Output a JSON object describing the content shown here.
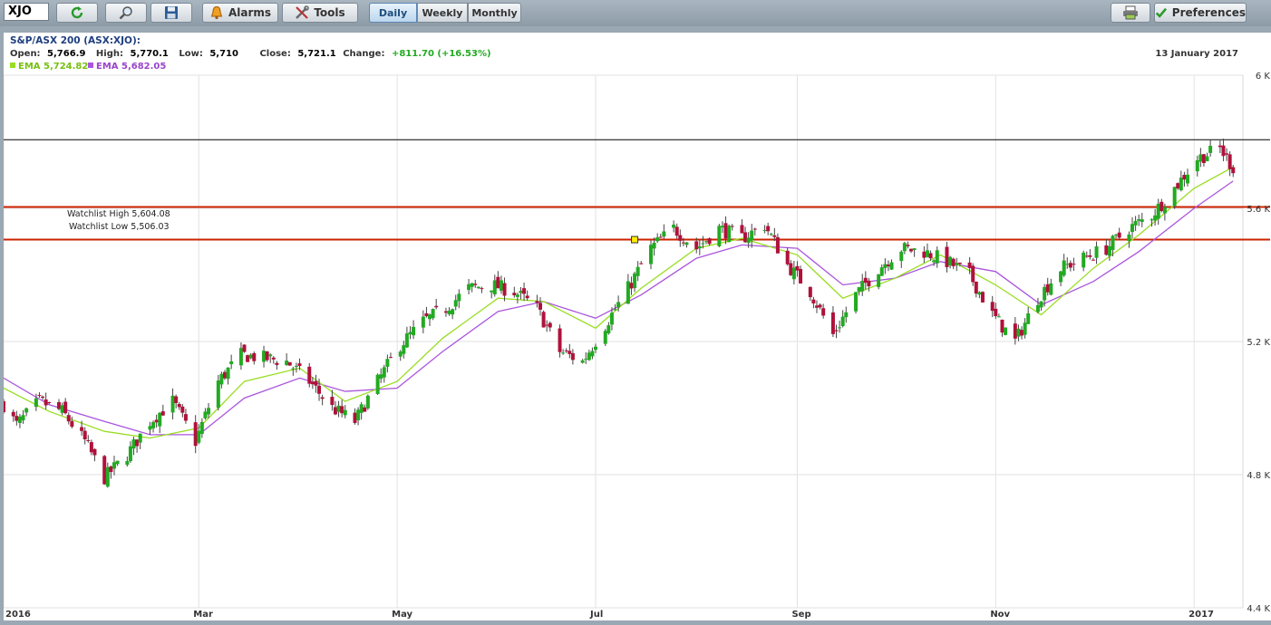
{
  "toolbar": {
    "symbol": "XJO",
    "alarms_label": "Alarms",
    "tools_label": "Tools",
    "periods": [
      "Daily",
      "Weekly",
      "Monthly"
    ],
    "active_period": "Daily",
    "preferences_label": "Preferences"
  },
  "header": {
    "title": "S&P/ASX 200 (ASX:XJO):",
    "open_label": "Open:",
    "open": "5,766.9",
    "high_label": "High:",
    "high": "5,770.1",
    "low_label": "Low:",
    "low": "5,710",
    "close_label": "Close:",
    "close": "5,721.1",
    "change_label": "Change:",
    "change": "+811.70 (+16.53%)",
    "date": "13 January 2017",
    "ema1_label": "EMA 5,724.82",
    "ema2_label": "EMA 5,682.05"
  },
  "colors": {
    "up": "#22aa22",
    "down": "#b0113a",
    "ema_fast": "#99dd22",
    "ema_slow": "#aa55dd",
    "watch": "#cc2200"
  },
  "chart_data": {
    "type": "candlestick",
    "ylim": [
      4400,
      6000
    ],
    "yticks": [
      4400,
      4800,
      5200,
      5600,
      6000
    ],
    "ytick_labels": [
      "4.4 K",
      "4.8 K",
      "5.2 K",
      "5.6 K",
      "6 K"
    ],
    "xlim": [
      "2016-01-01",
      "2017-01-16"
    ],
    "xticks": [
      {
        "date": "2016-01-01",
        "label": "2016"
      },
      {
        "date": "2016-03-01",
        "label": "Mar"
      },
      {
        "date": "2016-05-01",
        "label": "May"
      },
      {
        "date": "2016-07-01",
        "label": "Jul"
      },
      {
        "date": "2016-09-01",
        "label": "Sep"
      },
      {
        "date": "2016-11-01",
        "label": "Nov"
      },
      {
        "date": "2017-01-01",
        "label": "2017"
      }
    ],
    "close_path": [
      [
        "2016-01-01",
        5010
      ],
      [
        "2016-01-05",
        4950
      ],
      [
        "2016-01-12",
        5020
      ],
      [
        "2016-01-19",
        4990
      ],
      [
        "2016-01-26",
        4900
      ],
      [
        "2016-02-01",
        4790
      ],
      [
        "2016-02-08",
        4860
      ],
      [
        "2016-02-15",
        4960
      ],
      [
        "2016-02-22",
        5020
      ],
      [
        "2016-02-29",
        4900
      ],
      [
        "2016-03-07",
        5080
      ],
      [
        "2016-03-14",
        5160
      ],
      [
        "2016-03-21",
        5150
      ],
      [
        "2016-03-28",
        5140
      ],
      [
        "2016-04-04",
        5080
      ],
      [
        "2016-04-11",
        5000
      ],
      [
        "2016-04-18",
        4960
      ],
      [
        "2016-04-25",
        5080
      ],
      [
        "2016-05-02",
        5190
      ],
      [
        "2016-05-09",
        5260
      ],
      [
        "2016-05-16",
        5300
      ],
      [
        "2016-05-23",
        5360
      ],
      [
        "2016-05-30",
        5370
      ],
      [
        "2016-06-06",
        5350
      ],
      [
        "2016-06-13",
        5300
      ],
      [
        "2016-06-20",
        5170
      ],
      [
        "2016-06-27",
        5140
      ],
      [
        "2016-07-04",
        5250
      ],
      [
        "2016-07-11",
        5360
      ],
      [
        "2016-07-18",
        5480
      ],
      [
        "2016-07-25",
        5540
      ],
      [
        "2016-08-01",
        5480
      ],
      [
        "2016-08-08",
        5540
      ],
      [
        "2016-08-15",
        5510
      ],
      [
        "2016-08-22",
        5550
      ],
      [
        "2016-08-29",
        5430
      ],
      [
        "2016-09-05",
        5350
      ],
      [
        "2016-09-12",
        5220
      ],
      [
        "2016-09-19",
        5340
      ],
      [
        "2016-09-26",
        5420
      ],
      [
        "2016-10-03",
        5480
      ],
      [
        "2016-10-10",
        5470
      ],
      [
        "2016-10-17",
        5440
      ],
      [
        "2016-10-24",
        5400
      ],
      [
        "2016-10-31",
        5280
      ],
      [
        "2016-11-07",
        5200
      ],
      [
        "2016-11-14",
        5330
      ],
      [
        "2016-11-21",
        5420
      ],
      [
        "2016-11-28",
        5450
      ],
      [
        "2016-12-05",
        5480
      ],
      [
        "2016-12-12",
        5540
      ],
      [
        "2016-12-19",
        5580
      ],
      [
        "2016-12-26",
        5660
      ],
      [
        "2017-01-02",
        5750
      ],
      [
        "2017-01-09",
        5780
      ],
      [
        "2017-01-13",
        5721
      ]
    ],
    "ema_fast_path": [
      [
        "2016-01-01",
        5060
      ],
      [
        "2016-01-15",
        4990
      ],
      [
        "2016-02-01",
        4930
      ],
      [
        "2016-02-15",
        4910
      ],
      [
        "2016-03-01",
        4940
      ],
      [
        "2016-03-15",
        5080
      ],
      [
        "2016-04-01",
        5120
      ],
      [
        "2016-04-15",
        5020
      ],
      [
        "2016-05-01",
        5080
      ],
      [
        "2016-05-15",
        5210
      ],
      [
        "2016-06-01",
        5330
      ],
      [
        "2016-06-15",
        5320
      ],
      [
        "2016-07-01",
        5240
      ],
      [
        "2016-07-15",
        5360
      ],
      [
        "2016-08-01",
        5480
      ],
      [
        "2016-08-15",
        5510
      ],
      [
        "2016-09-01",
        5460
      ],
      [
        "2016-09-15",
        5330
      ],
      [
        "2016-10-01",
        5390
      ],
      [
        "2016-10-15",
        5460
      ],
      [
        "2016-11-01",
        5370
      ],
      [
        "2016-11-15",
        5280
      ],
      [
        "2016-12-01",
        5420
      ],
      [
        "2016-12-15",
        5520
      ],
      [
        "2017-01-01",
        5660
      ],
      [
        "2017-01-13",
        5724
      ]
    ],
    "ema_slow_path": [
      [
        "2016-01-01",
        5090
      ],
      [
        "2016-01-15",
        5010
      ],
      [
        "2016-02-01",
        4960
      ],
      [
        "2016-02-15",
        4920
      ],
      [
        "2016-03-01",
        4920
      ],
      [
        "2016-03-15",
        5030
      ],
      [
        "2016-04-01",
        5090
      ],
      [
        "2016-04-15",
        5050
      ],
      [
        "2016-05-01",
        5060
      ],
      [
        "2016-05-15",
        5170
      ],
      [
        "2016-06-01",
        5290
      ],
      [
        "2016-06-15",
        5320
      ],
      [
        "2016-07-01",
        5270
      ],
      [
        "2016-07-15",
        5340
      ],
      [
        "2016-08-01",
        5450
      ],
      [
        "2016-08-15",
        5490
      ],
      [
        "2016-09-01",
        5480
      ],
      [
        "2016-09-15",
        5370
      ],
      [
        "2016-10-01",
        5390
      ],
      [
        "2016-10-15",
        5440
      ],
      [
        "2016-11-01",
        5410
      ],
      [
        "2016-11-15",
        5310
      ],
      [
        "2016-12-01",
        5380
      ],
      [
        "2016-12-15",
        5470
      ],
      [
        "2017-01-01",
        5600
      ],
      [
        "2017-01-13",
        5682
      ]
    ],
    "horizontal_lines": [
      {
        "value": 5806,
        "color": "#000000"
      },
      {
        "value": 5604.08,
        "color": "#cc2200",
        "label": "Watchlist High 5,604.08"
      },
      {
        "value": 5506.03,
        "color": "#cc2200",
        "label": "Watchlist Low 5,506.03"
      }
    ],
    "marker": {
      "date": "2016-07-13",
      "value": 5506
    }
  }
}
